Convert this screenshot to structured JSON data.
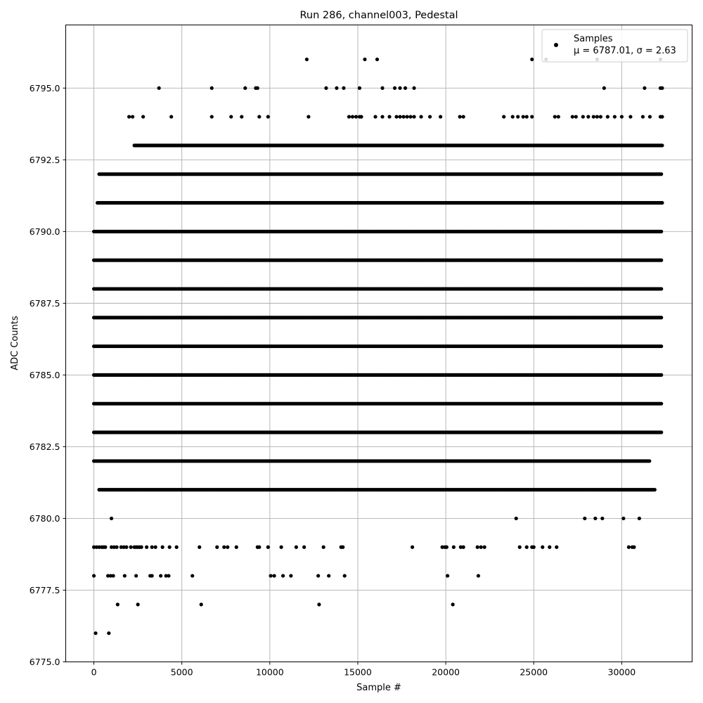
{
  "chart_data": {
    "type": "scatter",
    "title": "Run 286, channel003, Pedestal",
    "xlabel": "Sample #",
    "ylabel": "ADC Counts",
    "xlim": [
      -1600,
      34000
    ],
    "ylim": [
      6775.0,
      6797.2
    ],
    "xticks": [
      0,
      5000,
      10000,
      15000,
      20000,
      25000,
      30000
    ],
    "xtick_labels": [
      "0",
      "5000",
      "10000",
      "15000",
      "20000",
      "25000",
      "30000"
    ],
    "yticks": [
      6775.0,
      6777.5,
      6780.0,
      6782.5,
      6785.0,
      6787.5,
      6790.0,
      6792.5,
      6795.0
    ],
    "ytick_labels": [
      "6775.0",
      "6777.5",
      "6780.0",
      "6782.5",
      "6785.0",
      "6787.5",
      "6790.0",
      "6792.5",
      "6795.0"
    ],
    "grid": true,
    "marker_color": "#000000",
    "legend": {
      "placement": "top-right",
      "entries": [
        {
          "label": "Samples",
          "stats": "μ = 6787.01, σ = 2.63"
        }
      ]
    },
    "series": [
      {
        "name": "Samples",
        "x_range": [
          0,
          32300
        ],
        "levels": [
          {
            "y": 6776,
            "x": [
              100,
              850
            ]
          },
          {
            "y": 6777,
            "x": [
              1350,
              2500,
              6100,
              12800,
              20400
            ]
          },
          {
            "y": 6778,
            "x": [
              0,
              800,
              950,
              1100,
              1750,
              2400,
              3200,
              3300,
              3800,
              4100,
              4250,
              5600,
              10050,
              10250,
              10750,
              11200,
              12750,
              13350,
              14250,
              20100,
              21850
            ]
          },
          {
            "y": 6779,
            "x": [
              0,
              150,
              300,
              450,
              550,
              650,
              1000,
              1150,
              1300,
              1550,
              1700,
              1850,
              2100,
              2300,
              2400,
              2500,
              2600,
              2700,
              3000,
              3300,
              3500,
              3900,
              4300,
              4700,
              6000,
              7000,
              7400,
              7600,
              8100,
              9300,
              9400,
              9900,
              10650,
              11500,
              11950,
              13050,
              14050,
              14150,
              18100,
              19800,
              19950,
              20050,
              20450,
              20850,
              21000,
              21800,
              22000,
              22200,
              24200,
              24600,
              24900,
              25000,
              25500,
              25900,
              26300,
              30400,
              30600,
              30700
            ]
          },
          {
            "y": 6780,
            "x": [
              1000,
              24000,
              27900,
              28500,
              28900,
              30100,
              31000
            ]
          },
          {
            "y": 6781,
            "x": [
              300,
              31900
            ]
          },
          {
            "y": 6782,
            "x": [
              0,
              31600
            ]
          },
          {
            "y": 6783,
            "x": [
              0,
              32300
            ]
          },
          {
            "y": 6784,
            "x": [
              0,
              32300
            ]
          },
          {
            "y": 6785,
            "x": [
              0,
              32300
            ]
          },
          {
            "y": 6786,
            "x": [
              0,
              32300
            ]
          },
          {
            "y": 6787,
            "x": [
              0,
              32300
            ]
          },
          {
            "y": 6788,
            "x": [
              0,
              32300
            ]
          },
          {
            "y": 6789,
            "x": [
              0,
              32300
            ]
          },
          {
            "y": 6790,
            "x": [
              0,
              32300
            ]
          },
          {
            "y": 6791,
            "x": [
              200,
              32300
            ]
          },
          {
            "y": 6792,
            "x": [
              300,
              32300
            ]
          },
          {
            "y": 6793,
            "x": [
              2300,
              32300
            ]
          },
          {
            "y": 6794,
            "x": [
              2000,
              2200,
              2800,
              4400,
              6700,
              7800,
              8400,
              9400,
              9900,
              12200,
              14500,
              14700,
              14900,
              15100,
              15200,
              16000,
              16400,
              16800,
              17200,
              17400,
              17600,
              17800,
              18000,
              18200,
              18600,
              19100,
              19700,
              20800,
              21000,
              23300,
              23800,
              24100,
              24400,
              24600,
              24900,
              26200,
              26400,
              27200,
              27400,
              27800,
              28100,
              28400,
              28600,
              28800,
              29200,
              29600,
              30000,
              30500,
              31200,
              31600,
              32200,
              32300
            ]
          },
          {
            "y": 6795,
            "x": [
              3700,
              6700,
              8600,
              9200,
              9300,
              13200,
              13800,
              14200,
              15100,
              16400,
              17100,
              17400,
              17700,
              18200,
              29000,
              31300,
              32200,
              32300
            ]
          },
          {
            "y": 6796,
            "x": [
              12100,
              15400,
              16100,
              24900,
              25700,
              28600,
              32200
            ]
          }
        ],
        "level_ranges_note": ""
      }
    ]
  }
}
